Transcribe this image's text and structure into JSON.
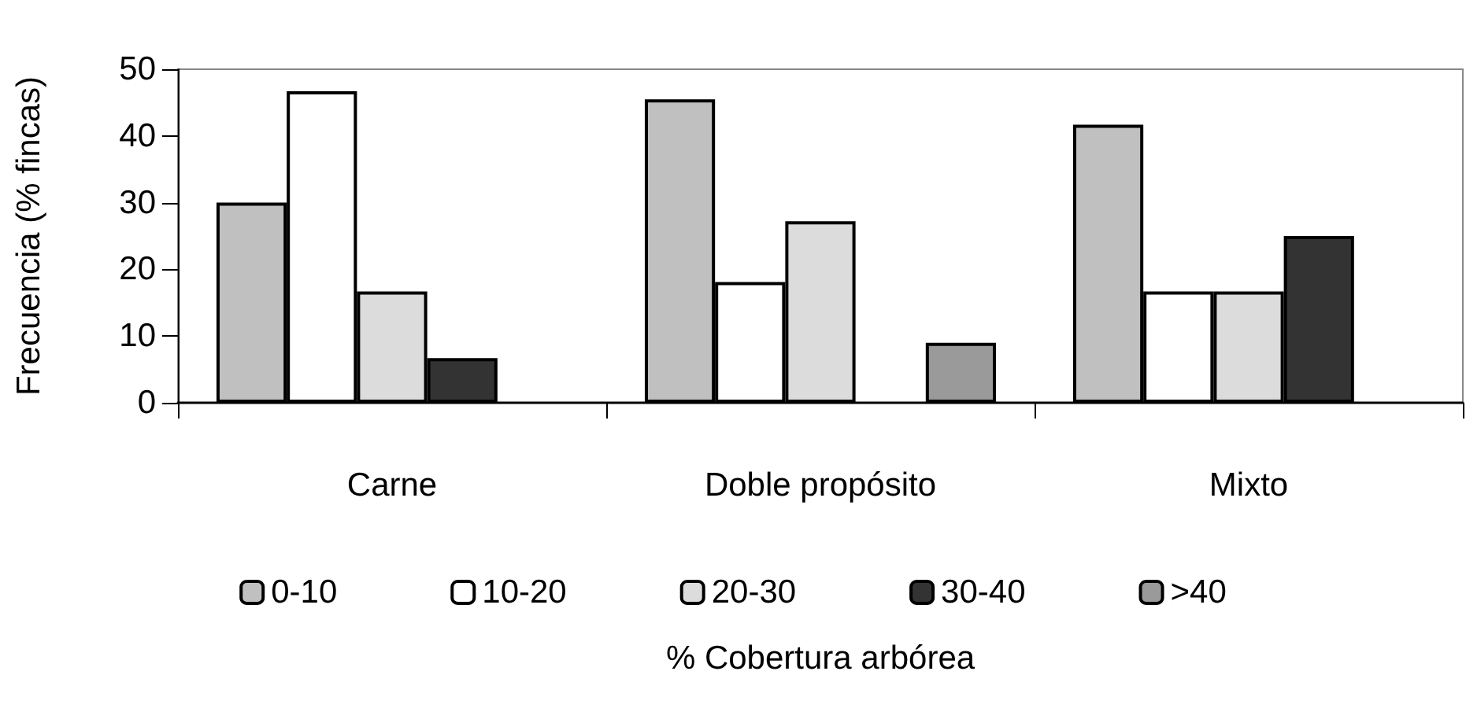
{
  "chart_data": {
    "type": "bar",
    "xlabel": "% Cobertura arbórea",
    "ylabel": "Frecuencia (% fincas)",
    "categories": [
      "Carne",
      "Doble propósito",
      "Mixto"
    ],
    "series": [
      {
        "name": "0-10",
        "color": "#c0c0c0",
        "values": [
          30.0,
          45.5,
          41.7
        ]
      },
      {
        "name": "10-20",
        "color": "#ffffff",
        "values": [
          46.7,
          18.1,
          16.7
        ]
      },
      {
        "name": "20-30",
        "color": "#dcdcdc",
        "values": [
          16.7,
          27.2,
          16.7
        ]
      },
      {
        "name": "30-40",
        "color": "#333333",
        "values": [
          6.7,
          null,
          25.0
        ]
      },
      {
        "name": ">40",
        "color": "#9a9a9a",
        "values": [
          null,
          9.0,
          null
        ]
      }
    ],
    "ylim": [
      0,
      50
    ],
    "yticks": [
      0,
      10,
      20,
      30,
      40,
      50
    ],
    "grid": false,
    "legend": "bottom"
  }
}
